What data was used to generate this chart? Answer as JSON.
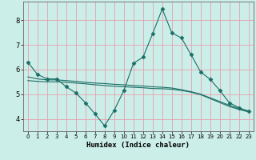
{
  "xlabel": "Humidex (Indice chaleur)",
  "bg_color": "#cceee8",
  "line_color": "#1a6e66",
  "grid_color": "#e8a0b0",
  "xlim": [
    -0.5,
    23.5
  ],
  "ylim": [
    3.5,
    8.75
  ],
  "yticks": [
    4,
    5,
    6,
    7,
    8
  ],
  "xticks": [
    0,
    1,
    2,
    3,
    4,
    5,
    6,
    7,
    8,
    9,
    10,
    11,
    12,
    13,
    14,
    15,
    16,
    17,
    18,
    19,
    20,
    21,
    22,
    23
  ],
  "line1_x": [
    0,
    1,
    2,
    3,
    4,
    5,
    6,
    7,
    8,
    9,
    10,
    11,
    12,
    13,
    14,
    15,
    16,
    17,
    18,
    19,
    20,
    21,
    22,
    23
  ],
  "line1_y": [
    6.3,
    5.8,
    5.62,
    5.62,
    5.3,
    5.05,
    4.65,
    4.2,
    3.72,
    4.35,
    5.15,
    6.25,
    6.5,
    7.45,
    8.45,
    7.48,
    7.28,
    6.6,
    5.9,
    5.6,
    5.15,
    4.65,
    4.45,
    4.3
  ],
  "line2_x": [
    0,
    1,
    2,
    3,
    4,
    5,
    6,
    7,
    8,
    9,
    10,
    11,
    12,
    13,
    14,
    15,
    16,
    17,
    18,
    19,
    20,
    21,
    22,
    23
  ],
  "line2_y": [
    5.7,
    5.62,
    5.58,
    5.58,
    5.55,
    5.52,
    5.48,
    5.45,
    5.43,
    5.4,
    5.38,
    5.35,
    5.33,
    5.3,
    5.28,
    5.25,
    5.18,
    5.1,
    5.0,
    4.85,
    4.7,
    4.55,
    4.42,
    4.32
  ],
  "line3_x": [
    0,
    1,
    2,
    3,
    4,
    5,
    6,
    7,
    8,
    9,
    10,
    11,
    12,
    13,
    14,
    15,
    16,
    17,
    18,
    19,
    20,
    21,
    22,
    23
  ],
  "line3_y": [
    5.55,
    5.52,
    5.5,
    5.5,
    5.48,
    5.45,
    5.42,
    5.38,
    5.35,
    5.32,
    5.3,
    5.28,
    5.26,
    5.23,
    5.22,
    5.2,
    5.15,
    5.08,
    4.98,
    4.82,
    4.66,
    4.5,
    4.38,
    4.28
  ],
  "marker": "D",
  "markersize": 2.5
}
